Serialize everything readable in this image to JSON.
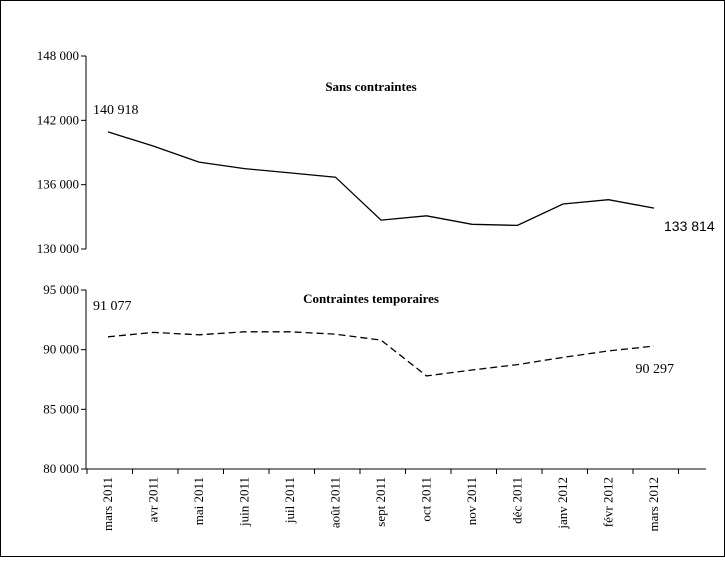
{
  "chart_data": [
    {
      "type": "line",
      "title": "Sans contraintes",
      "categories": [
        "mars 2011",
        "avr 2011",
        "mai 2011",
        "juin 2011",
        "juil 2011",
        "août 2011",
        "sept 2011",
        "oct 2011",
        "nov 2011",
        "déc 2011",
        "janv 2012",
        "févr 2012",
        "mars 2012"
      ],
      "series": [
        {
          "values": [
            140918,
            139600,
            138100,
            137500,
            137100,
            136700,
            132700,
            133100,
            132300,
            132200,
            134200,
            134600,
            133814
          ],
          "style": "solid",
          "color": "#000000"
        }
      ],
      "ylim": [
        130000,
        148000
      ],
      "yticks": [
        "130 000",
        "136 000",
        "142 000",
        "148 000"
      ],
      "data_labels": [
        {
          "index": 0,
          "text": "140 918"
        },
        {
          "index": 12,
          "text": "133 814"
        }
      ]
    },
    {
      "type": "line",
      "title": "Contraintes temporaires",
      "categories": [
        "mars 2011",
        "avr 2011",
        "mai 2011",
        "juin 2011",
        "juil 2011",
        "août 2011",
        "sept 2011",
        "oct 2011",
        "nov 2011",
        "déc 2011",
        "janv 2012",
        "févr 2012",
        "mars 2012"
      ],
      "series": [
        {
          "values": [
            91077,
            91450,
            91250,
            91500,
            91500,
            91300,
            90800,
            87800,
            88300,
            88750,
            89350,
            89900,
            90297
          ],
          "style": "dashed",
          "color": "#000000"
        }
      ],
      "ylim": [
        80000,
        95000
      ],
      "yticks": [
        "80 000",
        "85 000",
        "90 000",
        "95 000"
      ],
      "data_labels": [
        {
          "index": 0,
          "text": "91 077"
        },
        {
          "index": 12,
          "text": "90 297"
        }
      ]
    }
  ]
}
